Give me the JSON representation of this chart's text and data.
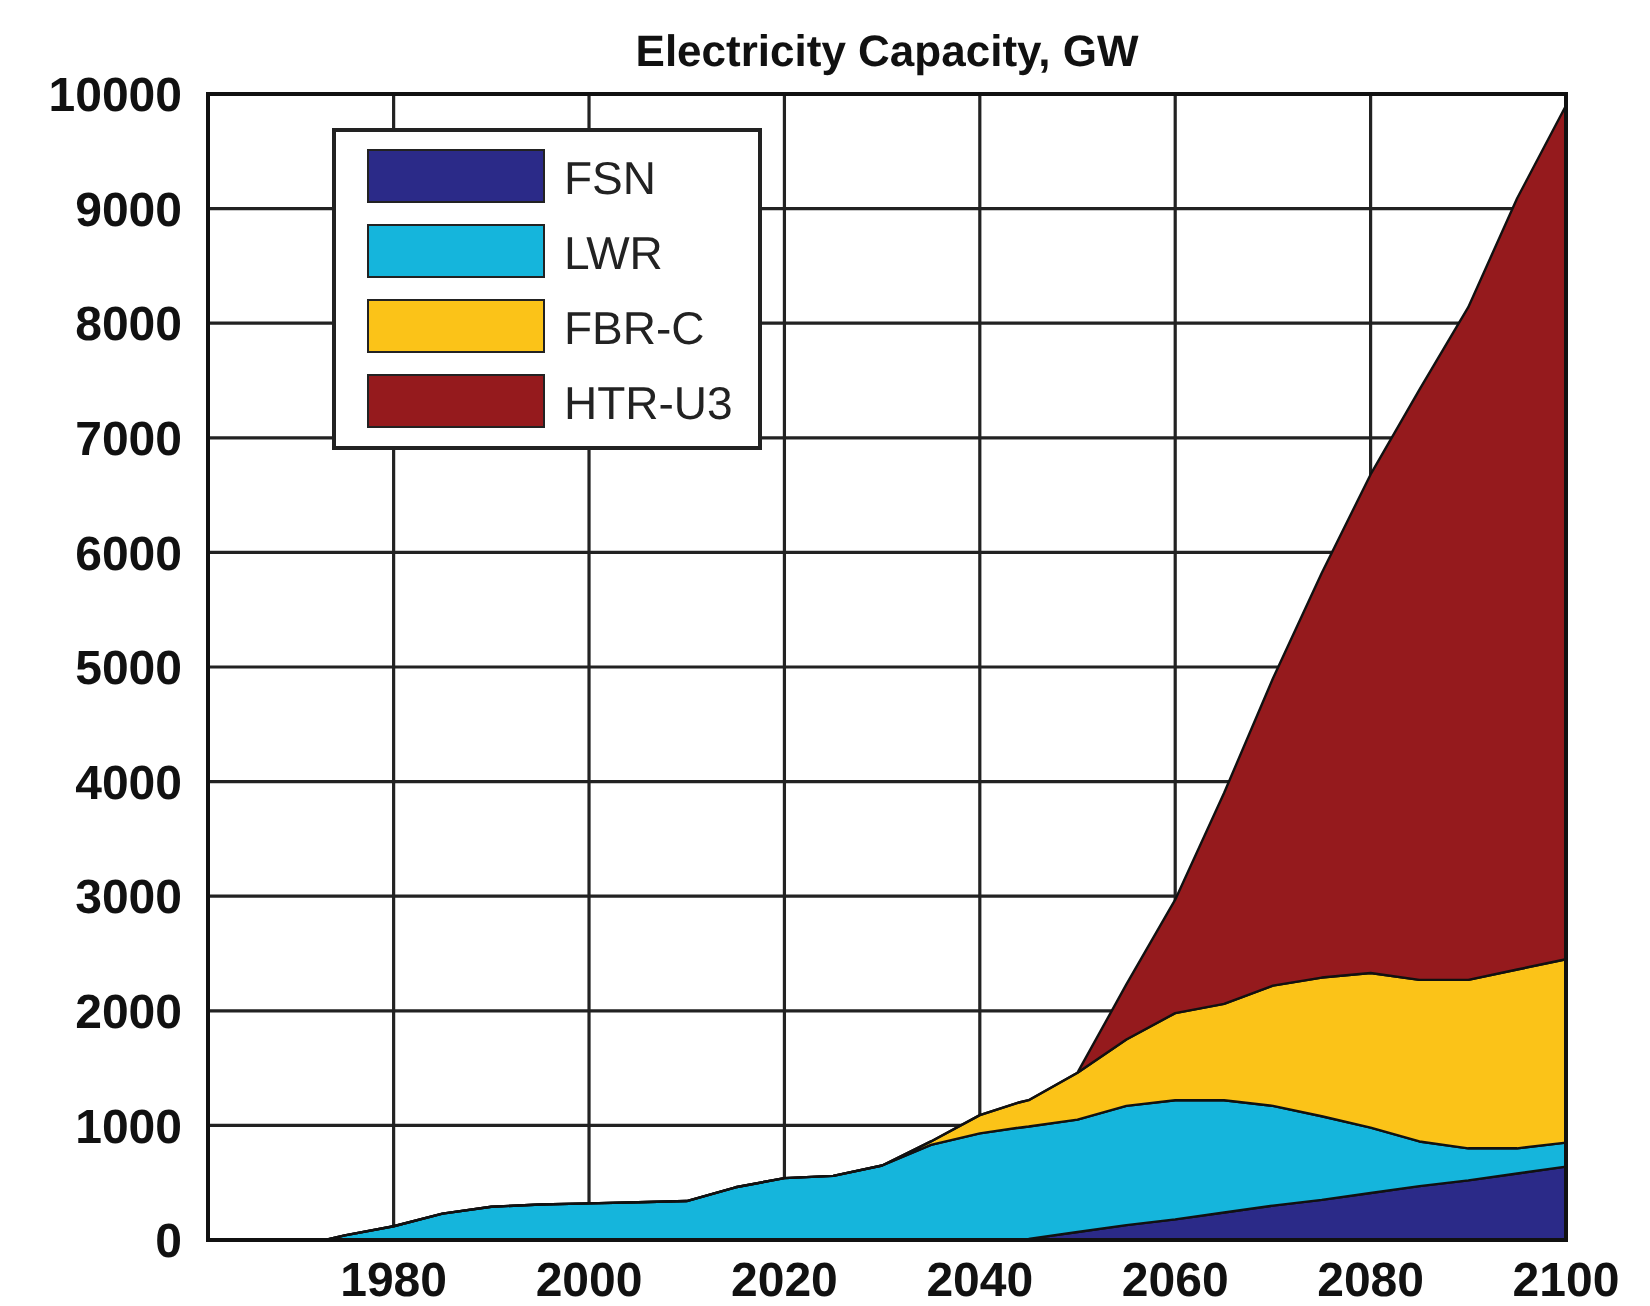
{
  "chart_data": {
    "type": "area",
    "title": "Electricity Capacity, GW",
    "stacked": true,
    "x": [
      1961,
      1965,
      1970,
      1973,
      1975,
      1980,
      1985,
      1990,
      1995,
      2000,
      2005,
      2010,
      2015,
      2020,
      2025,
      2030,
      2035,
      2040,
      2044,
      2045,
      2050,
      2055,
      2060,
      2065,
      2070,
      2075,
      2080,
      2085,
      2090,
      2095,
      2100
    ],
    "series": [
      {
        "name": "FSN",
        "color": "#2b2a88",
        "values": [
          0,
          0,
          0,
          0,
          0,
          0,
          0,
          0,
          0,
          0,
          0,
          0,
          0,
          0,
          0,
          0,
          0,
          0,
          0,
          10,
          70,
          130,
          180,
          240,
          300,
          350,
          410,
          470,
          520,
          580,
          640
        ]
      },
      {
        "name": "LWR",
        "color": "#15b5dc",
        "values": [
          0,
          0,
          0,
          0,
          40,
          120,
          230,
          290,
          310,
          320,
          330,
          340,
          460,
          540,
          560,
          650,
          830,
          930,
          980,
          980,
          980,
          1040,
          1040,
          980,
          870,
          730,
          570,
          390,
          280,
          220,
          210
        ]
      },
      {
        "name": "FBR-C",
        "color": "#fbc318",
        "values": [
          0,
          0,
          0,
          0,
          0,
          0,
          0,
          0,
          0,
          0,
          0,
          0,
          0,
          0,
          0,
          0,
          30,
          160,
          220,
          230,
          410,
          580,
          760,
          840,
          1050,
          1210,
          1350,
          1410,
          1470,
          1560,
          1600
        ]
      },
      {
        "name": "HTR-U3",
        "color": "#951a1d",
        "values": [
          0,
          0,
          0,
          0,
          0,
          0,
          0,
          0,
          0,
          0,
          0,
          0,
          0,
          0,
          0,
          0,
          0,
          0,
          0,
          0,
          0,
          480,
          990,
          1840,
          2680,
          3530,
          4350,
          5150,
          5870,
          6730,
          7450
        ]
      }
    ],
    "xlim": [
      1961,
      2100
    ],
    "ylim": [
      0,
      10000
    ],
    "xticks": [
      1980,
      2000,
      2020,
      2040,
      2060,
      2080,
      2100
    ],
    "yticks": [
      0,
      1000,
      2000,
      3000,
      4000,
      5000,
      6000,
      7000,
      8000,
      9000,
      10000
    ],
    "grid": true,
    "legend": "top left"
  }
}
